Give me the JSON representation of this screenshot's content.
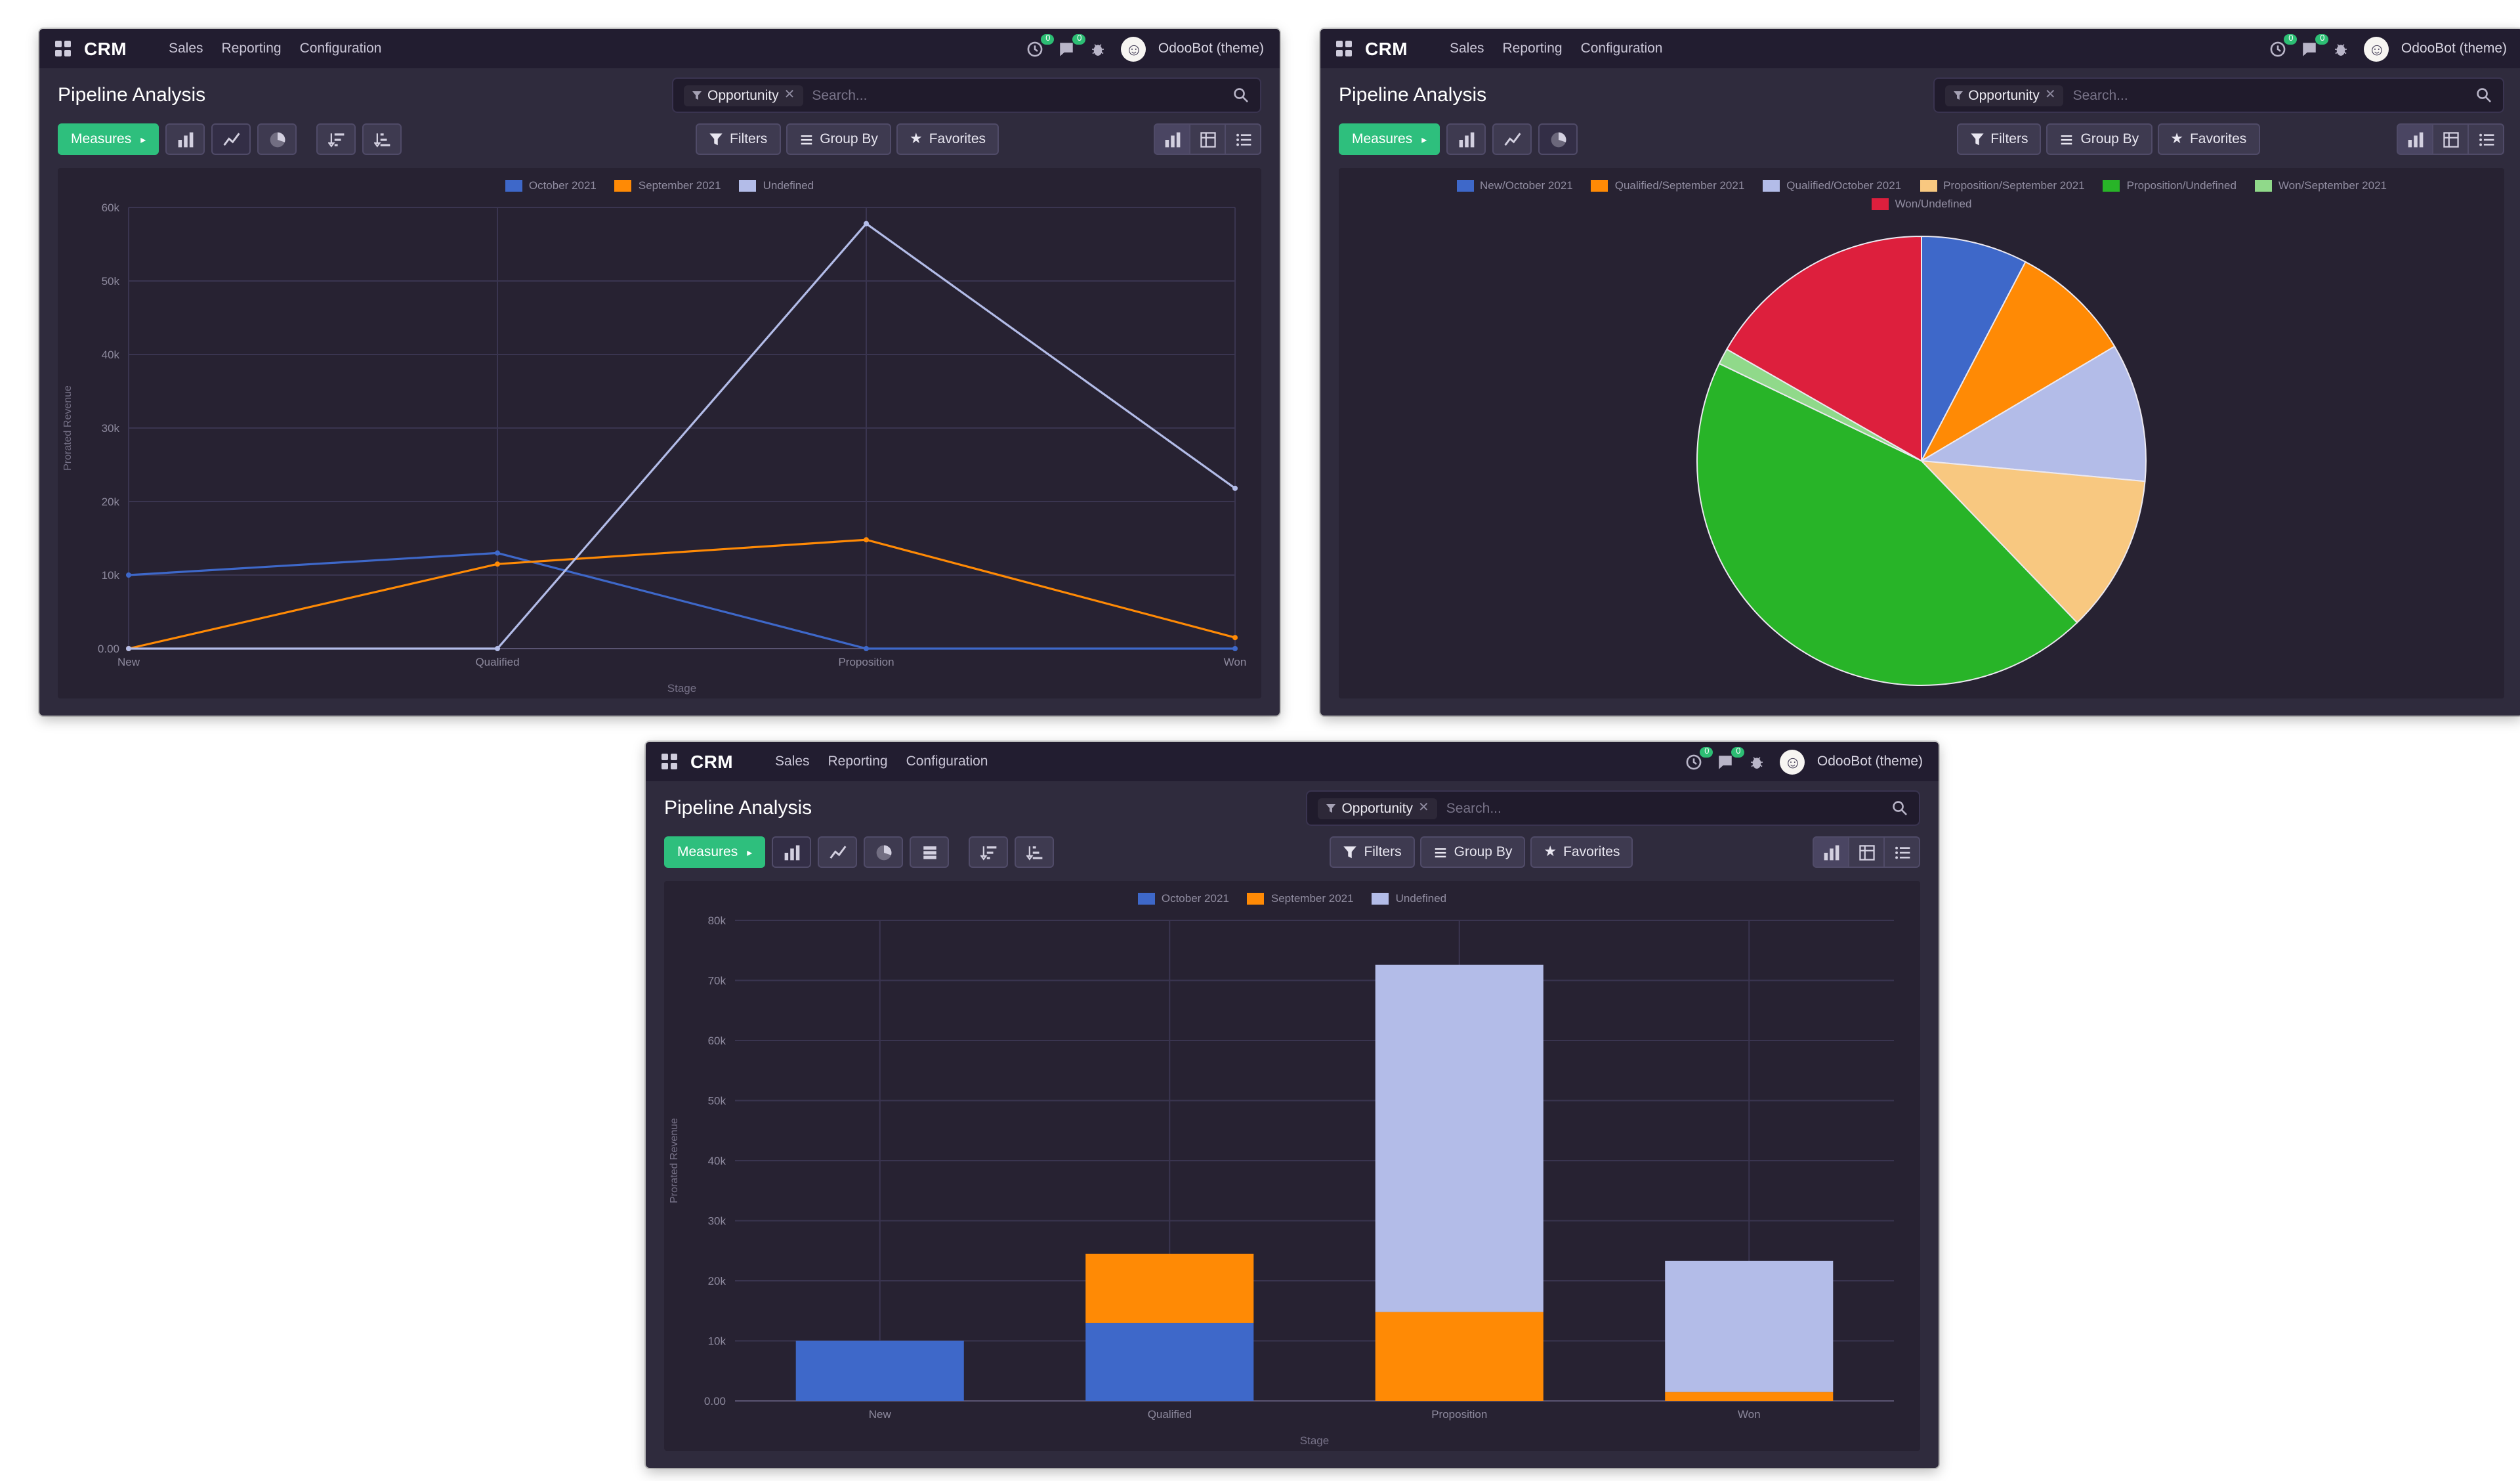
{
  "chrome": {
    "app_name": "CRM",
    "menus": [
      "Sales",
      "Reporting",
      "Configuration"
    ],
    "activity_count": "0",
    "message_count": "0",
    "user_label": "OdooBot (theme)",
    "page_title": "Pipeline Analysis",
    "search_facet": "Opportunity",
    "search_placeholder": "Search...",
    "measures_label": "Measures",
    "filters_label": "Filters",
    "group_by_label": "Group By",
    "favorites_label": "Favorites"
  },
  "colors": {
    "october_blue": "#3E68C9",
    "september_orange": "#FF8A05",
    "undefined_lavender": "#B3BCE8",
    "proposition_tan": "#F8C880",
    "proposition_green": "#28B428",
    "won_light_green": "#90D98A",
    "won_red": "#DD1F3D",
    "measures_green": "#2EBF7D",
    "badge_green": "#2DBE74"
  },
  "windows": [
    {
      "name": "line-chart-window",
      "chart_data": {
        "type": "line",
        "title": "",
        "xlabel": "Stage",
        "ylabel": "Prorated Revenue",
        "categories": [
          "New",
          "Qualified",
          "Proposition",
          "Won"
        ],
        "series": [
          {
            "name": "October 2021",
            "color": "#3E68C9",
            "values": [
              10000,
              13000,
              0,
              0
            ]
          },
          {
            "name": "September 2021",
            "color": "#FF8A05",
            "values": [
              0,
              11500,
              14800,
              1500
            ]
          },
          {
            "name": "Undefined",
            "color": "#B3BCE8",
            "values": [
              0,
              0,
              57800,
              21800
            ]
          }
        ],
        "ylim": [
          0,
          60000
        ],
        "yticks": [
          "0.00",
          "10k",
          "20k",
          "30k",
          "40k",
          "50k",
          "60k"
        ],
        "legend_position": "top",
        "grid": true
      }
    },
    {
      "name": "pie-chart-window",
      "chart_data": {
        "type": "pie",
        "title": "",
        "slices": [
          {
            "label": "New/October 2021",
            "value": 10000,
            "color": "#3E68C9"
          },
          {
            "label": "Qualified/September 2021",
            "value": 11500,
            "color": "#FF8A05"
          },
          {
            "label": "Qualified/October 2021",
            "value": 13000,
            "color": "#B3BCE8"
          },
          {
            "label": "Proposition/September 2021",
            "value": 14800,
            "color": "#F8C880"
          },
          {
            "label": "Proposition/Undefined",
            "value": 57800,
            "color": "#28B428"
          },
          {
            "label": "Won/September 2021",
            "value": 1500,
            "color": "#90D98A"
          },
          {
            "label": "Won/Undefined",
            "value": 21800,
            "color": "#DD1F3D"
          }
        ],
        "legend_position": "top"
      }
    },
    {
      "name": "bar-chart-window",
      "chart_data": {
        "type": "bar",
        "stacked": true,
        "title": "",
        "xlabel": "Stage",
        "ylabel": "Prorated Revenue",
        "categories": [
          "New",
          "Qualified",
          "Proposition",
          "Won"
        ],
        "series": [
          {
            "name": "October 2021",
            "color": "#3E68C9",
            "values": [
              10000,
              13000,
              0,
              0
            ]
          },
          {
            "name": "September 2021",
            "color": "#FF8A05",
            "values": [
              0,
              11500,
              14800,
              1500
            ]
          },
          {
            "name": "Undefined",
            "color": "#B3BCE8",
            "values": [
              0,
              0,
              57800,
              21800
            ]
          }
        ],
        "ylim": [
          0,
          80000
        ],
        "yticks": [
          "0.00",
          "10k",
          "20k",
          "30k",
          "40k",
          "50k",
          "60k",
          "70k",
          "80k"
        ],
        "legend_position": "top",
        "grid": true
      }
    }
  ]
}
